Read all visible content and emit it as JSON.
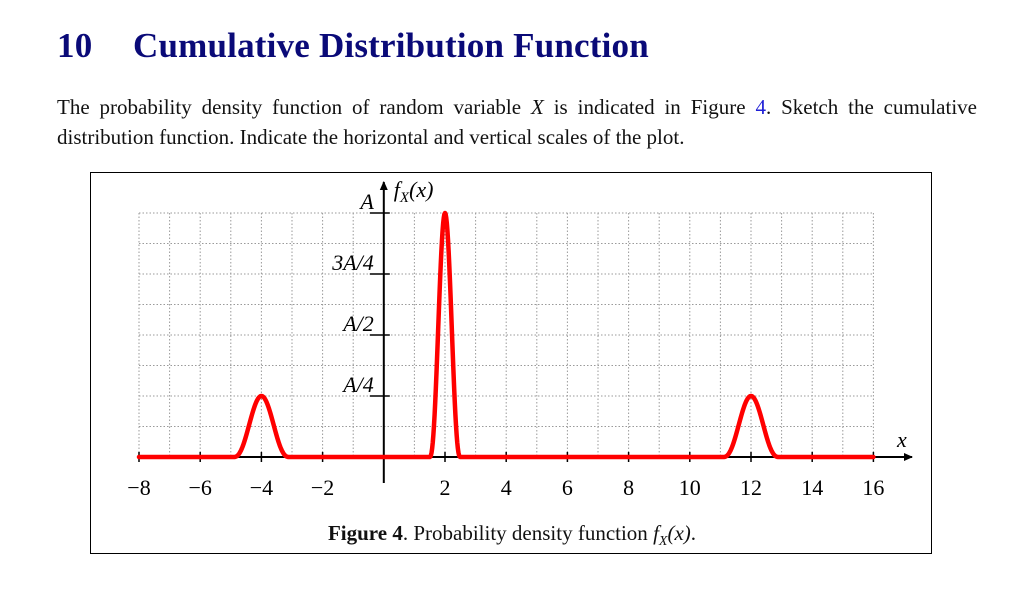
{
  "section": {
    "number": "10",
    "title": "Cumulative Distribution Function"
  },
  "paragraph": {
    "part1": "The probability density function of random variable ",
    "var": "X",
    "part2": " is indicated in Figure ",
    "fig_ref": "4",
    "part3": ". Sketch the cumulative distribution function. Indicate the horizontal and vertical scales of the plot."
  },
  "figure": {
    "label": "Figure 4",
    "caption_text": ". Probability density function ",
    "caption_math": "f_X(x)",
    "caption_end": "."
  },
  "chart_data": {
    "type": "line",
    "xlabel": "x",
    "ylabel": "f_X(x)",
    "xlim": [
      -8,
      17
    ],
    "ylim": [
      0,
      1
    ],
    "x_ticks": [
      -8,
      -6,
      -4,
      -2,
      2,
      4,
      6,
      8,
      10,
      12,
      14,
      16
    ],
    "x_tick_labels": [
      "−8",
      "−6",
      "−4",
      "−2",
      "2",
      "4",
      "6",
      "8",
      "10",
      "12",
      "14",
      "16"
    ],
    "y_ticks": [
      0.25,
      0.5,
      0.75,
      1
    ],
    "y_tick_labels": [
      "A/4",
      "A/2",
      "3A/4",
      "A"
    ],
    "grid": true,
    "series": [
      {
        "color": "#ff0000",
        "peaks": [
          {
            "center": -4,
            "height": 0.25,
            "width": 1.8
          },
          {
            "center": 2,
            "height": 1.0,
            "width": 1.0
          },
          {
            "center": 12,
            "height": 0.25,
            "width": 1.8
          }
        ],
        "x": [
          -8,
          -5,
          -4.5,
          -4,
          -3.5,
          -3,
          1,
          1.5,
          2,
          2.5,
          3,
          11,
          11.5,
          12,
          12.5,
          13,
          16
        ],
        "y": [
          0,
          0,
          0.125,
          0.25,
          0.125,
          0,
          0,
          0.5,
          1,
          0.5,
          0,
          0,
          0.125,
          0.25,
          0.125,
          0,
          0
        ]
      }
    ]
  }
}
